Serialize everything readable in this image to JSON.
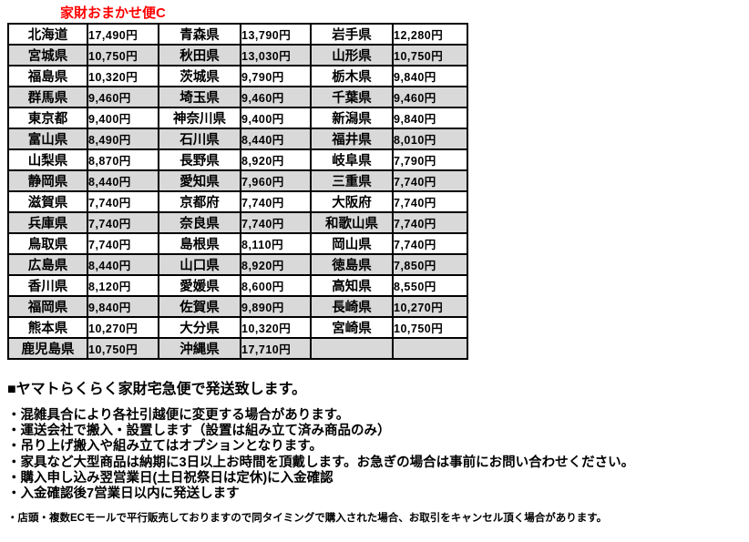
{
  "title": "家財おまかせ便C",
  "colors": {
    "accent_red": "#ff0000",
    "row_alt_gray": "#d9d9d9",
    "border": "#000000",
    "text": "#000000"
  },
  "table": {
    "rows": [
      [
        {
          "name": "北海道",
          "price": "17,490円"
        },
        {
          "name": "青森県",
          "price": "13,790円"
        },
        {
          "name": "岩手県",
          "price": "12,280円"
        }
      ],
      [
        {
          "name": "宮城県",
          "price": "10,750円"
        },
        {
          "name": "秋田県",
          "price": "13,030円"
        },
        {
          "name": "山形県",
          "price": "10,750円"
        }
      ],
      [
        {
          "name": "福島県",
          "price": "10,320円"
        },
        {
          "name": "茨城県",
          "price": "9,790円"
        },
        {
          "name": "栃木県",
          "price": "9,840円"
        }
      ],
      [
        {
          "name": "群馬県",
          "price": "9,460円"
        },
        {
          "name": "埼玉県",
          "price": "9,460円"
        },
        {
          "name": "千葉県",
          "price": "9,460円"
        }
      ],
      [
        {
          "name": "東京都",
          "price": "9,400円"
        },
        {
          "name": "神奈川県",
          "price": "9,400円"
        },
        {
          "name": "新潟県",
          "price": "9,840円"
        }
      ],
      [
        {
          "name": "富山県",
          "price": "8,490円"
        },
        {
          "name": "石川県",
          "price": "8,440円"
        },
        {
          "name": "福井県",
          "price": "8,010円"
        }
      ],
      [
        {
          "name": "山梨県",
          "price": "8,870円"
        },
        {
          "name": "長野県",
          "price": "8,920円"
        },
        {
          "name": "岐阜県",
          "price": "7,790円"
        }
      ],
      [
        {
          "name": "静岡県",
          "price": "8,440円"
        },
        {
          "name": "愛知県",
          "price": "7,960円"
        },
        {
          "name": "三重県",
          "price": "7,740円"
        }
      ],
      [
        {
          "name": "滋賀県",
          "price": "7,740円"
        },
        {
          "name": "京都府",
          "price": "7,740円"
        },
        {
          "name": "大阪府",
          "price": "7,740円"
        }
      ],
      [
        {
          "name": "兵庫県",
          "price": "7,740円"
        },
        {
          "name": "奈良県",
          "price": "7,740円"
        },
        {
          "name": "和歌山県",
          "price": "7,740円"
        }
      ],
      [
        {
          "name": "鳥取県",
          "price": "7,740円"
        },
        {
          "name": "島根県",
          "price": "8,110円"
        },
        {
          "name": "岡山県",
          "price": "7,740円"
        }
      ],
      [
        {
          "name": "広島県",
          "price": "8,440円"
        },
        {
          "name": "山口県",
          "price": "8,920円"
        },
        {
          "name": "徳島県",
          "price": "7,850円"
        }
      ],
      [
        {
          "name": "香川県",
          "price": "8,120円"
        },
        {
          "name": "愛媛県",
          "price": "8,600円"
        },
        {
          "name": "高知県",
          "price": "8,550円"
        }
      ],
      [
        {
          "name": "福岡県",
          "price": "9,840円"
        },
        {
          "name": "佐賀県",
          "price": "9,890円"
        },
        {
          "name": "長崎県",
          "price": "10,270円"
        }
      ],
      [
        {
          "name": "熊本県",
          "price": "10,270円"
        },
        {
          "name": "大分県",
          "price": "10,320円"
        },
        {
          "name": "宮崎県",
          "price": "10,750円"
        }
      ],
      [
        {
          "name": "鹿児島県",
          "price": "10,750円"
        },
        {
          "name": "沖縄県",
          "price": "17,710円"
        },
        {
          "name": "",
          "price": ""
        }
      ]
    ]
  },
  "notes": {
    "heading": "■ヤマトらくらく家財宅急便で発送致します。",
    "bullets": [
      "・混雑具合により各社引越便に変更する場合があります。",
      "・運送会社で搬入・設置します（設置は組み立て済み商品のみ）",
      "・吊り上げ搬入や組み立てはオプションとなります。",
      "・家具など大型商品は納期に3日以上お時間を頂戴します。お急ぎの場合は事前にお問い合わせください。",
      "・購入申し込み翌営業日(土日祝祭日は定休)に入金確認",
      "・入金確認後7営業日以内に発送します"
    ],
    "footnote": "・店頭・複数ECモールで平行販売しておりますので同タイミングで購入された場合、お取引をキャンセル頂く場合があります。"
  }
}
